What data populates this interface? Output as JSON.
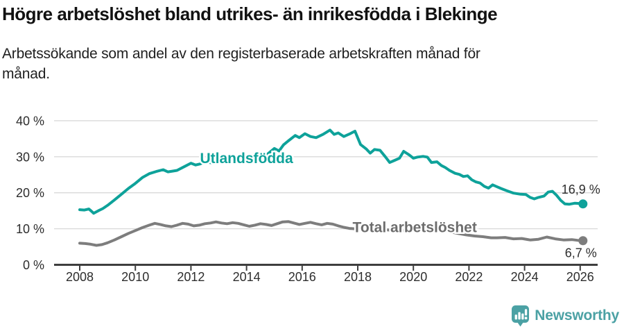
{
  "header": {
    "title": "Högre arbetslöshet bland utrikes- än inrikesfödda i Blekinge",
    "subtitle_line1": "Arbetssökande som andel av den registerbaserade arbetskraften månad för",
    "subtitle_line2": "månad."
  },
  "chart_data": {
    "type": "line",
    "title": "Högre arbetslöshet bland utrikes- än inrikesfödda i Blekinge",
    "subtitle": "Arbetssökande som andel av den registerbaserade arbetskraften månad för månad.",
    "xlabel": "",
    "ylabel": "",
    "xlim": [
      2007.1,
      2026.6
    ],
    "ylim": [
      0,
      41.5
    ],
    "grid": "horizontal",
    "legend_position": "inline-labels",
    "colors": {
      "grid": "#d9d9d9",
      "axis": "#3e3e3e",
      "tick_text": "#2d2d2d",
      "end_label_text": "#2d2d2d"
    },
    "yticks": [
      {
        "value": 0,
        "label": "0 %"
      },
      {
        "value": 10,
        "label": "10 %"
      },
      {
        "value": 20,
        "label": "20 %"
      },
      {
        "value": 30,
        "label": "30 %"
      },
      {
        "value": 40,
        "label": "40 %"
      }
    ],
    "xticks": [
      {
        "value": 2008,
        "label": "2008"
      },
      {
        "value": 2010,
        "label": "2010"
      },
      {
        "value": 2012,
        "label": "2012"
      },
      {
        "value": 2014,
        "label": "2014"
      },
      {
        "value": 2016,
        "label": "2016"
      },
      {
        "value": 2018,
        "label": "2018"
      },
      {
        "value": 2020,
        "label": "2020"
      },
      {
        "value": 2022,
        "label": "2022"
      },
      {
        "value": 2024,
        "label": "2024"
      },
      {
        "value": 2026,
        "label": "2026"
      }
    ],
    "series": [
      {
        "name": "Utlandsfödda",
        "slug": "utlandsfodda",
        "color": "#0ea29a",
        "label_color": "#0ea29a",
        "label_pos": [
          2014.0,
          29.6
        ],
        "end_label": "16,9 %",
        "end_value": 16.9,
        "points": [
          [
            2008.0,
            15.3
          ],
          [
            2008.17,
            15.2
          ],
          [
            2008.33,
            15.5
          ],
          [
            2008.42,
            14.9
          ],
          [
            2008.5,
            14.3
          ],
          [
            2008.67,
            15.0
          ],
          [
            2008.83,
            15.6
          ],
          [
            2009.0,
            16.5
          ],
          [
            2009.25,
            18.0
          ],
          [
            2009.5,
            19.6
          ],
          [
            2009.75,
            21.2
          ],
          [
            2010.0,
            22.6
          ],
          [
            2010.25,
            24.2
          ],
          [
            2010.5,
            25.3
          ],
          [
            2010.75,
            25.9
          ],
          [
            2011.0,
            26.4
          ],
          [
            2011.17,
            25.8
          ],
          [
            2011.33,
            26.0
          ],
          [
            2011.5,
            26.2
          ],
          [
            2011.75,
            27.2
          ],
          [
            2012.0,
            28.2
          ],
          [
            2012.17,
            27.7
          ],
          [
            2012.33,
            28.0
          ],
          [
            2012.5,
            28.6
          ],
          [
            2012.75,
            28.3
          ],
          [
            2013.0,
            29.4
          ],
          [
            2013.17,
            29.0
          ],
          [
            2013.33,
            28.6
          ],
          [
            2013.5,
            28.8
          ],
          [
            2013.75,
            29.3
          ],
          [
            2014.0,
            29.1
          ],
          [
            2014.25,
            29.8
          ],
          [
            2014.5,
            30.2
          ],
          [
            2014.75,
            30.7
          ],
          [
            2015.0,
            32.3
          ],
          [
            2015.17,
            31.6
          ],
          [
            2015.33,
            33.3
          ],
          [
            2015.5,
            34.4
          ],
          [
            2015.75,
            35.9
          ],
          [
            2015.9,
            35.3
          ],
          [
            2016.1,
            36.4
          ],
          [
            2016.3,
            35.6
          ],
          [
            2016.5,
            35.3
          ],
          [
            2016.75,
            36.2
          ],
          [
            2017.0,
            37.4
          ],
          [
            2017.15,
            36.2
          ],
          [
            2017.3,
            36.6
          ],
          [
            2017.5,
            35.6
          ],
          [
            2017.7,
            36.3
          ],
          [
            2017.9,
            37.1
          ],
          [
            2018.1,
            33.4
          ],
          [
            2018.3,
            32.2
          ],
          [
            2018.45,
            31.0
          ],
          [
            2018.6,
            32.0
          ],
          [
            2018.8,
            31.8
          ],
          [
            2019.0,
            29.9
          ],
          [
            2019.15,
            28.4
          ],
          [
            2019.3,
            28.9
          ],
          [
            2019.5,
            29.6
          ],
          [
            2019.65,
            31.5
          ],
          [
            2019.85,
            30.5
          ],
          [
            2020.0,
            29.6
          ],
          [
            2020.15,
            29.9
          ],
          [
            2020.35,
            30.1
          ],
          [
            2020.5,
            29.9
          ],
          [
            2020.65,
            28.4
          ],
          [
            2020.85,
            28.6
          ],
          [
            2021.0,
            27.6
          ],
          [
            2021.15,
            27.0
          ],
          [
            2021.3,
            26.2
          ],
          [
            2021.5,
            25.4
          ],
          [
            2021.65,
            25.1
          ],
          [
            2021.8,
            24.5
          ],
          [
            2021.95,
            24.7
          ],
          [
            2022.1,
            23.6
          ],
          [
            2022.25,
            23.0
          ],
          [
            2022.4,
            22.7
          ],
          [
            2022.55,
            21.8
          ],
          [
            2022.7,
            21.3
          ],
          [
            2022.85,
            22.2
          ],
          [
            2023.0,
            21.7
          ],
          [
            2023.15,
            21.2
          ],
          [
            2023.35,
            20.6
          ],
          [
            2023.6,
            19.9
          ],
          [
            2023.85,
            19.6
          ],
          [
            2024.05,
            19.5
          ],
          [
            2024.2,
            18.7
          ],
          [
            2024.35,
            18.3
          ],
          [
            2024.5,
            18.7
          ],
          [
            2024.7,
            19.1
          ],
          [
            2024.85,
            20.2
          ],
          [
            2025.0,
            20.4
          ],
          [
            2025.15,
            19.3
          ],
          [
            2025.3,
            17.9
          ],
          [
            2025.45,
            16.9
          ],
          [
            2025.6,
            16.8
          ],
          [
            2025.8,
            17.1
          ],
          [
            2026.0,
            17.0
          ],
          [
            2026.1,
            16.9
          ]
        ]
      },
      {
        "name": "Total arbetslöshet",
        "slug": "total-arbetsloshet",
        "color": "#7d7d7d",
        "label_color": "#6d6d6d",
        "label_pos": [
          2020.05,
          10.4
        ],
        "end_label": "6,7 %",
        "end_value": 6.7,
        "points": [
          [
            2008.0,
            6.0
          ],
          [
            2008.2,
            5.9
          ],
          [
            2008.4,
            5.7
          ],
          [
            2008.6,
            5.4
          ],
          [
            2008.8,
            5.6
          ],
          [
            2009.0,
            6.1
          ],
          [
            2009.25,
            6.9
          ],
          [
            2009.5,
            7.8
          ],
          [
            2009.75,
            8.7
          ],
          [
            2010.0,
            9.5
          ],
          [
            2010.25,
            10.3
          ],
          [
            2010.5,
            11.0
          ],
          [
            2010.7,
            11.5
          ],
          [
            2010.9,
            11.2
          ],
          [
            2011.1,
            10.8
          ],
          [
            2011.3,
            10.6
          ],
          [
            2011.5,
            11.0
          ],
          [
            2011.7,
            11.5
          ],
          [
            2011.9,
            11.3
          ],
          [
            2012.1,
            10.8
          ],
          [
            2012.3,
            11.0
          ],
          [
            2012.5,
            11.4
          ],
          [
            2012.7,
            11.6
          ],
          [
            2012.9,
            11.9
          ],
          [
            2013.1,
            11.6
          ],
          [
            2013.3,
            11.4
          ],
          [
            2013.5,
            11.7
          ],
          [
            2013.7,
            11.5
          ],
          [
            2013.9,
            11.1
          ],
          [
            2014.1,
            10.7
          ],
          [
            2014.3,
            11.0
          ],
          [
            2014.5,
            11.4
          ],
          [
            2014.7,
            11.2
          ],
          [
            2014.9,
            10.9
          ],
          [
            2015.1,
            11.4
          ],
          [
            2015.3,
            11.9
          ],
          [
            2015.5,
            12.0
          ],
          [
            2015.7,
            11.6
          ],
          [
            2015.9,
            11.2
          ],
          [
            2016.1,
            11.5
          ],
          [
            2016.3,
            11.8
          ],
          [
            2016.5,
            11.4
          ],
          [
            2016.7,
            11.1
          ],
          [
            2016.9,
            11.5
          ],
          [
            2017.1,
            11.3
          ],
          [
            2017.3,
            10.8
          ],
          [
            2017.5,
            10.4
          ],
          [
            2017.7,
            10.1
          ],
          [
            2017.9,
            10.0
          ],
          [
            2018.1,
            10.3
          ],
          [
            2018.3,
            10.5
          ],
          [
            2018.5,
            10.2
          ],
          [
            2018.7,
            10.0
          ],
          [
            2018.9,
            9.8
          ],
          [
            2019.2,
            9.6
          ],
          [
            2019.5,
            9.4
          ],
          [
            2019.8,
            9.6
          ],
          [
            2020.1,
            10.5
          ],
          [
            2020.4,
            10.9
          ],
          [
            2020.7,
            10.4
          ],
          [
            2021.0,
            9.8
          ],
          [
            2021.3,
            9.2
          ],
          [
            2021.6,
            8.7
          ],
          [
            2021.9,
            8.3
          ],
          [
            2022.2,
            8.0
          ],
          [
            2022.5,
            7.8
          ],
          [
            2022.8,
            7.5
          ],
          [
            2023.0,
            7.5
          ],
          [
            2023.3,
            7.6
          ],
          [
            2023.6,
            7.2
          ],
          [
            2023.9,
            7.3
          ],
          [
            2024.2,
            6.9
          ],
          [
            2024.5,
            7.1
          ],
          [
            2024.8,
            7.7
          ],
          [
            2025.1,
            7.2
          ],
          [
            2025.4,
            6.9
          ],
          [
            2025.7,
            7.0
          ],
          [
            2025.9,
            6.8
          ],
          [
            2026.1,
            6.7
          ]
        ]
      }
    ]
  },
  "footer": {
    "brand": "Newsworthy",
    "brand_color": "#4ba1a4",
    "logo_icon": "bar-chart-speech-bubble-icon"
  }
}
